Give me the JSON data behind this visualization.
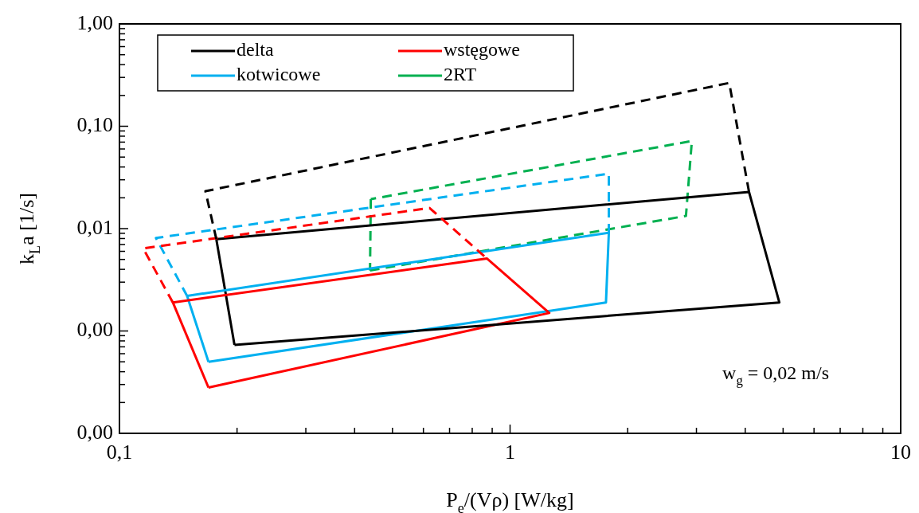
{
  "chart_data": {
    "type": "line",
    "xlabel": "P$_{e}$/(Vρ) [W/kg]",
    "ylabel": "k$_{L}$a [1/s]",
    "log": "xy",
    "grid": false,
    "legend": "top left",
    "marker": "none",
    "xlim": [
      0.1,
      10
    ],
    "ylim": [
      0.0001,
      1
    ],
    "xticks": [
      {
        "value": 0.1,
        "label": "0,1"
      },
      {
        "value": 0.2,
        "label": null
      },
      {
        "value": 0.3,
        "label": null
      },
      {
        "value": 0.4,
        "label": null
      },
      {
        "value": 0.5,
        "label": null
      },
      {
        "value": 0.6,
        "label": null
      },
      {
        "value": 0.7,
        "label": null
      },
      {
        "value": 0.8,
        "label": null
      },
      {
        "value": 0.9,
        "label": null
      },
      1,
      {
        "value": 2,
        "label": null
      },
      {
        "value": 3,
        "label": null
      },
      {
        "value": 4,
        "label": null
      },
      {
        "value": 5,
        "label": null
      },
      {
        "value": 6,
        "label": null
      },
      {
        "value": 7,
        "label": null
      },
      {
        "value": 8,
        "label": null
      },
      {
        "value": 9,
        "label": null
      },
      10
    ],
    "yticks": [
      {
        "value": 0.0001,
        "label": "0,00"
      },
      {
        "value": 0.0002,
        "label": null
      },
      {
        "value": 0.0003,
        "label": null
      },
      {
        "value": 0.0004,
        "label": null
      },
      {
        "value": 0.0005,
        "label": null
      },
      {
        "value": 0.0006,
        "label": null
      },
      {
        "value": 0.0007,
        "label": null
      },
      {
        "value": 0.0008,
        "label": null
      },
      {
        "value": 0.0009,
        "label": null
      },
      {
        "value": 0.001,
        "label": "0,00"
      },
      {
        "value": 0.002,
        "label": null
      },
      {
        "value": 0.003,
        "label": null
      },
      {
        "value": 0.004,
        "label": null
      },
      {
        "value": 0.005,
        "label": null
      },
      {
        "value": 0.006,
        "label": null
      },
      {
        "value": 0.007,
        "label": null
      },
      {
        "value": 0.008,
        "label": null
      },
      {
        "value": 0.009,
        "label": null
      },
      {
        "value": 0.01,
        "label": "0,01"
      },
      {
        "value": 0.02,
        "label": null
      },
      {
        "value": 0.03,
        "label": null
      },
      {
        "value": 0.04,
        "label": null
      },
      {
        "value": 0.05,
        "label": null
      },
      {
        "value": 0.06,
        "label": null
      },
      {
        "value": 0.07,
        "label": null
      },
      {
        "value": 0.08,
        "label": null
      },
      {
        "value": 0.09,
        "label": null
      },
      {
        "value": 0.1,
        "label": "0,10"
      },
      {
        "value": 0.2,
        "label": null
      },
      {
        "value": 0.3,
        "label": null
      },
      {
        "value": 0.4,
        "label": null
      },
      {
        "value": 0.5,
        "label": null
      },
      {
        "value": 0.6,
        "label": null
      },
      {
        "value": 0.7,
        "label": null
      },
      {
        "value": 0.8,
        "label": null
      },
      {
        "value": 0.9,
        "label": null
      },
      {
        "value": 1,
        "label": "1,00"
      }
    ],
    "annotations": [
      "w$_{g}$ = 0,02 m/s"
    ],
    "series": [
      {
        "color": "#000000",
        "line_style": "dashed",
        "x": [
          0.177,
          0.166,
          3.64,
          4.09
        ],
        "values": [
          0.0079,
          0.0232,
          0.265,
          0.0228
        ]
      },
      {
        "color": "#ff0000",
        "line_style": "dashed",
        "x": [
          0.137,
          0.115,
          0.622,
          0.873
        ],
        "values": [
          0.0019,
          0.0064,
          0.0159,
          0.0051
        ]
      },
      {
        "color": "#00b0f0",
        "line_style": "dashed",
        "x": [
          0.149,
          0.124,
          1.79,
          1.79
        ],
        "values": [
          0.0022,
          0.0081,
          0.0344,
          0.0091
        ]
      },
      {
        "name": "delta",
        "color": "#000000",
        "line_style": "solid",
        "x": [
          0.177,
          4.09,
          4.89,
          0.197
        ],
        "values": [
          0.0079,
          0.0228,
          0.0019,
          0.00073
        ]
      },
      {
        "name": "wstęgowe",
        "color": "#ff0000",
        "line_style": "solid",
        "x": [
          0.137,
          0.873,
          1.26,
          0.169
        ],
        "values": [
          0.0019,
          0.0051,
          0.0015,
          0.00028
        ]
      },
      {
        "name": "kotwicowe",
        "color": "#00b0f0",
        "line_style": "solid",
        "x": [
          0.149,
          1.79,
          1.76,
          0.169
        ],
        "values": [
          0.0022,
          0.0091,
          0.0019,
          0.0005
        ]
      },
      {
        "name": "2RT",
        "color": "#00b050",
        "line_style": "dashed",
        "x": [
          0.438,
          2.82,
          2.92,
          0.44
        ],
        "values": [
          0.0039,
          0.0133,
          0.0718,
          0.0194
        ]
      },
      {
        "color": "#000000",
        "line_style": "solid",
        "x": [
          0.197,
          0.177
        ],
        "values": [
          0.00073,
          0.0079
        ]
      },
      {
        "color": "#ff0000",
        "line_style": "solid",
        "x": [
          0.169,
          0.137
        ],
        "values": [
          0.00028,
          0.0019
        ]
      },
      {
        "color": "#00b0f0",
        "line_style": "solid",
        "x": [
          0.169,
          0.149
        ],
        "values": [
          0.0005,
          0.0022
        ]
      },
      {
        "color": "#00b050",
        "line_style": "dashed",
        "x": [
          0.44,
          0.438
        ],
        "values": [
          0.0194,
          0.0039
        ]
      }
    ]
  }
}
